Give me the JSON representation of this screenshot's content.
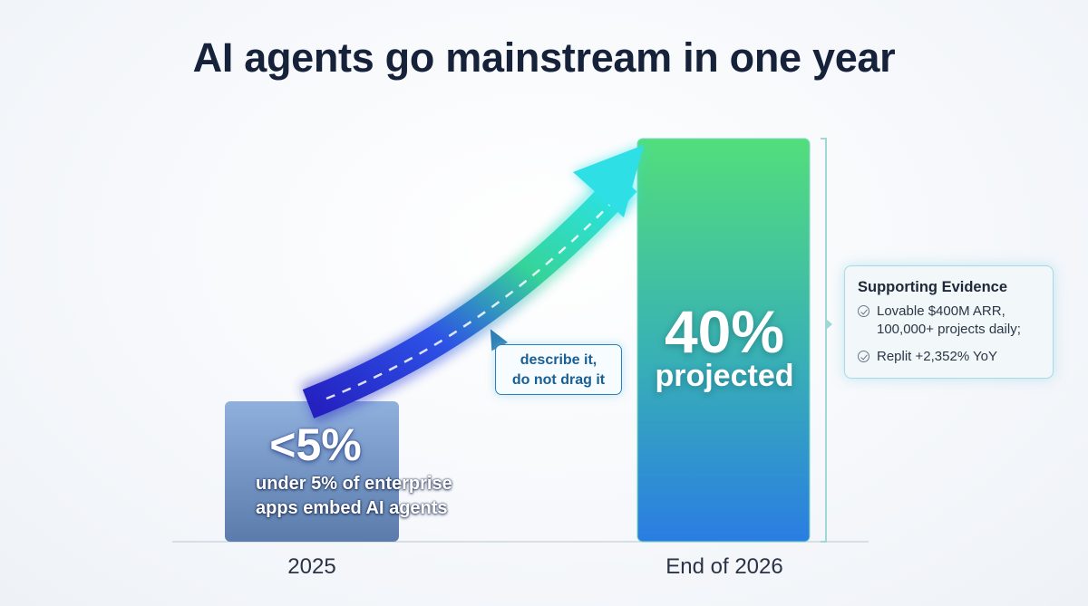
{
  "title": "AI agents go mainstream in one year",
  "chart_data": {
    "type": "bar",
    "title": "AI agents go mainstream in one year",
    "categories": [
      "2025",
      "End of 2026"
    ],
    "values": [
      5,
      40
    ],
    "value_labels": [
      "<5%",
      "40%"
    ],
    "value_sublabels": [
      "under 5% of enterprise apps embed AI agents",
      "projected"
    ],
    "ylim": [
      0,
      40
    ],
    "xlabel": "",
    "ylabel": "",
    "grid": false,
    "annotation": "describe it, do not drag it",
    "colors": {
      "bar_2025_top": "#8aa9d8",
      "bar_2025_bottom": "#5e7faf",
      "bar_2026_top": "#4fdc7f",
      "bar_2026_mid": "#3bb2b3",
      "bar_2026_bottom": "#2b7fe0",
      "arrow_start": "#2a2fd0",
      "arrow_end": "#2fe0e8"
    }
  },
  "bar1_note_lines": [
    "under 5% of enterprise",
    "apps embed AI agents"
  ],
  "evidence": {
    "title": "Supporting Evidence",
    "items": [
      [
        "Lovable $400M ARR,",
        "100,000+ projects daily;"
      ],
      [
        "Replit +2,352% YoY"
      ]
    ],
    "icon": "check-circle-icon"
  },
  "callout_lines": [
    "describe it,",
    "do not drag it"
  ]
}
